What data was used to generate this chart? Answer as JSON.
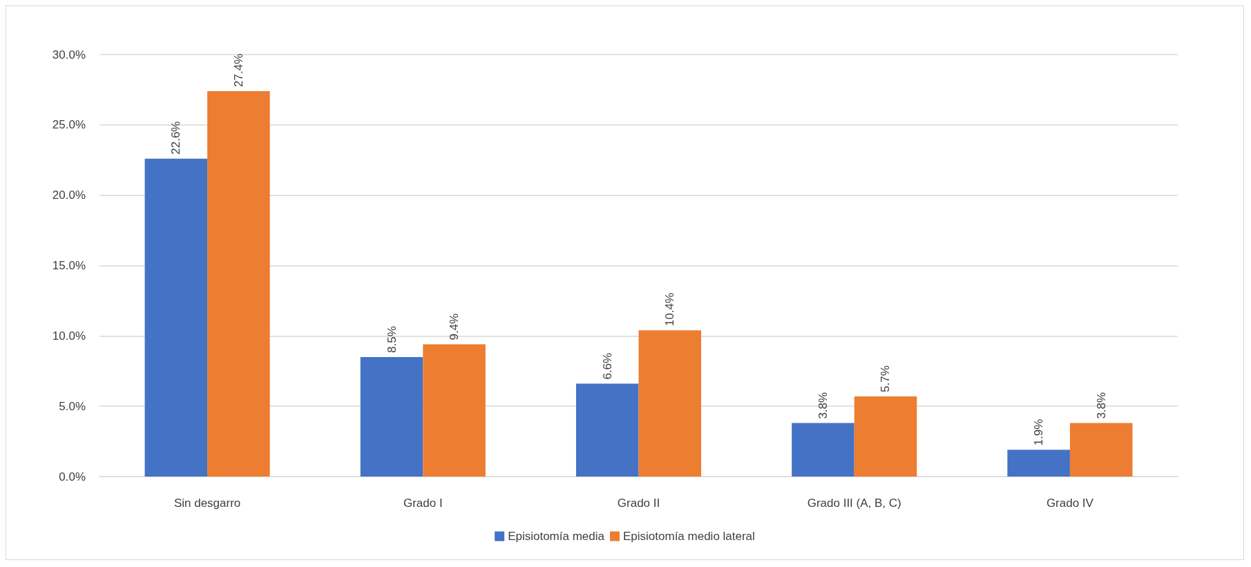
{
  "chart_data": {
    "type": "bar",
    "categories": [
      "Sin desgarro",
      "Grado I",
      "Grado II",
      "Grado III (A, B, C)",
      "Grado IV"
    ],
    "series": [
      {
        "name": "Episiotomía media",
        "color": "#4472c4",
        "values": [
          22.6,
          8.5,
          6.6,
          3.8,
          1.9
        ],
        "value_labels": [
          "22.6%",
          "8.5%",
          "6.6%",
          "3.8%",
          "1.9%"
        ]
      },
      {
        "name": "Episiotomía medio lateral",
        "color": "#ed7d31",
        "values": [
          27.4,
          9.4,
          10.4,
          5.7,
          3.8
        ],
        "value_labels": [
          "27.4%",
          "9.4%",
          "10.4%",
          "5.7%",
          "3.8%"
        ]
      }
    ],
    "ylim": [
      0,
      30
    ],
    "yticks": [
      {
        "value": 0,
        "label": "0.0%"
      },
      {
        "value": 5,
        "label": "5.0%"
      },
      {
        "value": 10,
        "label": "10.0%"
      },
      {
        "value": 15,
        "label": "15.0%"
      },
      {
        "value": 20,
        "label": "20.0%"
      },
      {
        "value": 25,
        "label": "25.0%"
      },
      {
        "value": 30,
        "label": "30.0%"
      }
    ],
    "grid": "y",
    "legend": "bottom"
  }
}
